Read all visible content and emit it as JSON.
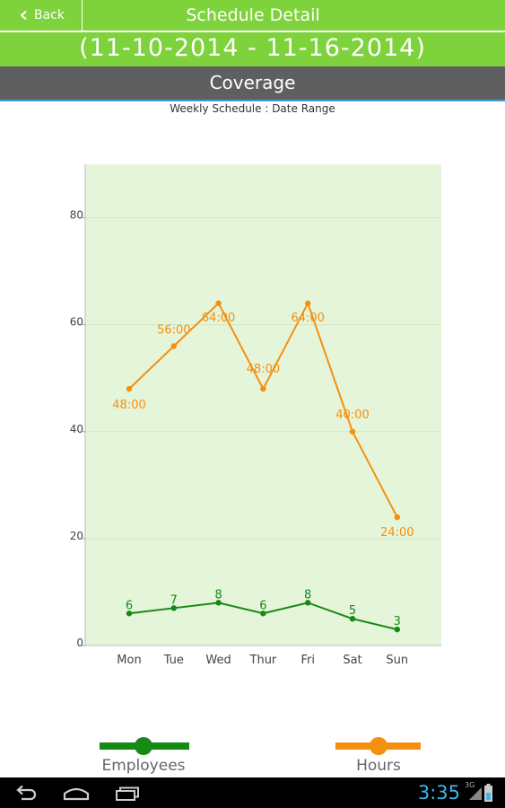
{
  "header": {
    "back_label": "Back",
    "title": "Schedule Detail"
  },
  "date_range": "(11-10-2014 - 11-16-2014)",
  "section_title": "Coverage",
  "chart_subtitle": "Weekly Schedule : Date Range",
  "chart_data": {
    "type": "line",
    "categories": [
      "Mon",
      "Tue",
      "Wed",
      "Thur",
      "Fri",
      "Sat",
      "Sun"
    ],
    "ylim": [
      0,
      90
    ],
    "yticks": [
      "0",
      "20",
      "40",
      "60",
      "80"
    ],
    "grid": true,
    "plot_background": "#e5f5da",
    "legend_position": "bottom",
    "series": [
      {
        "name": "Employees",
        "color": "#158a15",
        "values": [
          6,
          7,
          8,
          6,
          8,
          5,
          3
        ],
        "labels": [
          "6",
          "7",
          "8",
          "6",
          "8",
          "5",
          "3"
        ]
      },
      {
        "name": "Hours",
        "color": "#f5900f",
        "values": [
          48,
          56,
          64,
          48,
          64,
          40,
          24
        ],
        "labels": [
          "48:00",
          "56:00",
          "64:00",
          "48:00",
          "64:00",
          "40:00",
          "24:00"
        ]
      }
    ]
  },
  "legend": {
    "employees_label": "Employees",
    "hours_label": "Hours"
  },
  "status": {
    "time": "3:35",
    "network": "3G"
  },
  "icons": {
    "back": "chevron-left-icon",
    "nav_back": "nav-back-icon",
    "nav_home": "nav-home-icon",
    "nav_recents": "nav-recents-icon",
    "signal": "signal-icon",
    "battery": "battery-icon"
  },
  "colors": {
    "header_green": "#7ed23b",
    "coverage_gray": "#5f5f5f",
    "accent_blue": "#3fb7ea"
  }
}
